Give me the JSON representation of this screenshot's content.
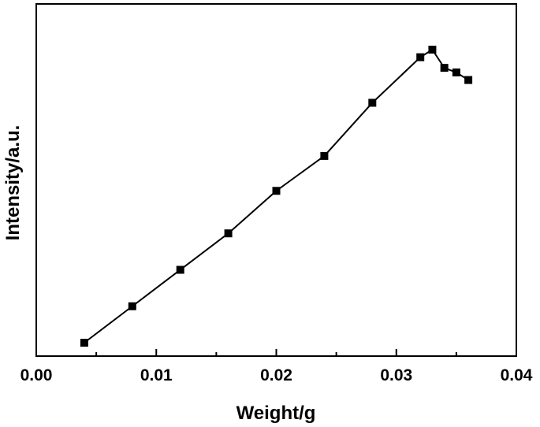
{
  "chart_data": {
    "type": "line",
    "title": "",
    "xlabel": "Weight/g",
    "ylabel": "Intensity/a.u.",
    "xlim": [
      0.0,
      0.04
    ],
    "ylim": [
      0,
      100
    ],
    "y_tick_labels_shown": false,
    "x_ticks": [
      "0.00",
      "0.01",
      "0.02",
      "0.03",
      "0.04"
    ],
    "grid": false,
    "legend": "none",
    "marker": "square",
    "series": [
      {
        "x": [
          0.004,
          0.008,
          0.012,
          0.016,
          0.02,
          0.024,
          0.028,
          0.032,
          0.033,
          0.034,
          0.035,
          0.036
        ],
        "y": [
          5.0,
          17.0,
          29.0,
          41.0,
          55.0,
          66.5,
          84.0,
          99.0,
          101.5,
          95.5,
          94.0,
          91.5
        ]
      }
    ],
    "colors": {
      "line": "#000000",
      "marker": "#000000",
      "axes": "#000000"
    }
  }
}
